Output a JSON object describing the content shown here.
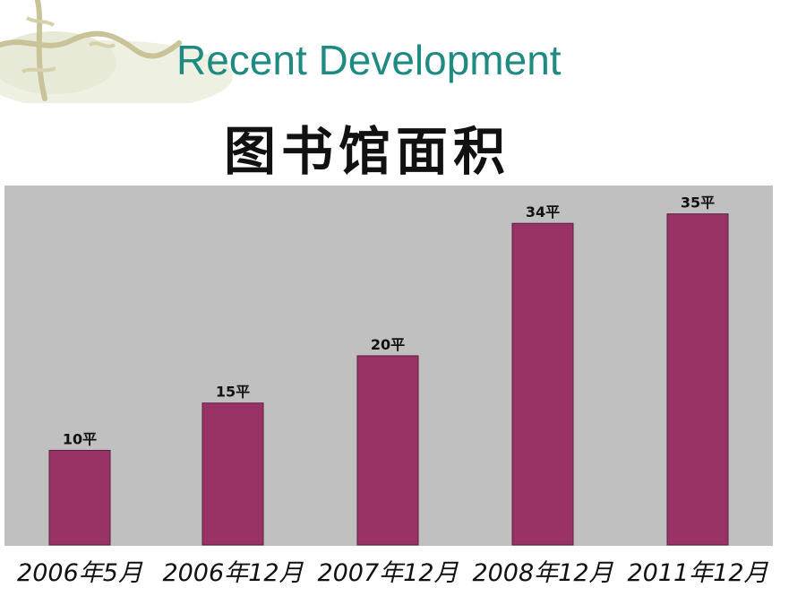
{
  "slide": {
    "title": "Recent Development"
  },
  "decor": {
    "icon": "vine-flourish-icon"
  },
  "colors": {
    "title": "#1f8a82",
    "plot_background": "#c0c0c0",
    "bar": "#993366",
    "bar_outline": "#5a1f3d"
  },
  "chart_data": {
    "type": "bar",
    "title": "图书馆面积",
    "categories": [
      "2006年5月",
      "2006年12月",
      "2007年12月",
      "2008年12月",
      "2011年12月"
    ],
    "values": [
      10,
      15,
      20,
      34,
      35
    ],
    "data_labels": [
      "10平",
      "15平",
      "20平",
      "34平",
      "35平"
    ],
    "xlabel": "",
    "ylabel": "",
    "ylim": [
      0,
      38
    ],
    "grid": false,
    "legend": "none"
  }
}
